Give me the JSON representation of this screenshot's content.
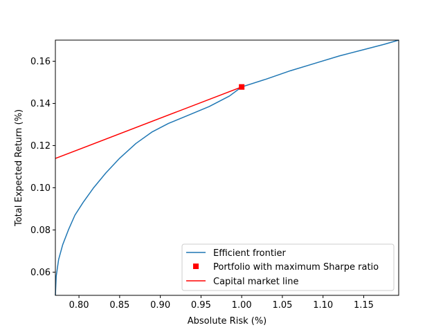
{
  "chart_data": {
    "type": "line",
    "title": "",
    "xlabel": "Absolute Risk (%)",
    "ylabel": "Total Expected Return (%)",
    "xlim": [
      0.771,
      1.193
    ],
    "ylim": [
      0.049,
      0.17
    ],
    "xticks": [
      0.8,
      0.85,
      0.9,
      0.95,
      1.0,
      1.05,
      1.1,
      1.15
    ],
    "xtick_labels": [
      "0.80",
      "0.85",
      "0.90",
      "0.95",
      "1.00",
      "1.05",
      "1.10",
      "1.15"
    ],
    "yticks": [
      0.06,
      0.08,
      0.1,
      0.12,
      0.14,
      0.16
    ],
    "ytick_labels": [
      "0.06",
      "0.08",
      "0.10",
      "0.12",
      "0.14",
      "0.16"
    ],
    "grid": false,
    "legend_position": "lower-right",
    "series": [
      {
        "name": "Efficient frontier",
        "kind": "line",
        "color": "#1f77b4",
        "x": [
          0.771,
          0.772,
          0.775,
          0.78,
          0.787,
          0.795,
          0.805,
          0.818,
          0.833,
          0.85,
          0.87,
          0.89,
          0.91,
          0.935,
          0.96,
          0.985,
          1.0,
          1.03,
          1.06,
          1.09,
          1.12,
          1.15,
          1.175,
          1.193
        ],
        "y": [
          0.049,
          0.058,
          0.066,
          0.073,
          0.08,
          0.087,
          0.093,
          0.1,
          0.107,
          0.114,
          0.121,
          0.1265,
          0.1305,
          0.1345,
          0.1385,
          0.1435,
          0.1478,
          0.1515,
          0.1555,
          0.159,
          0.1625,
          0.1655,
          0.168,
          0.17
        ]
      },
      {
        "name": "Portfolio with maximum Sharpe ratio",
        "kind": "marker",
        "color": "#ff0000",
        "x": [
          1.0
        ],
        "y": [
          0.1478
        ]
      },
      {
        "name": "Capital market line",
        "kind": "line",
        "color": "#ff0000",
        "x": [
          0.771,
          1.0
        ],
        "y": [
          0.1139,
          0.1478
        ]
      }
    ]
  }
}
